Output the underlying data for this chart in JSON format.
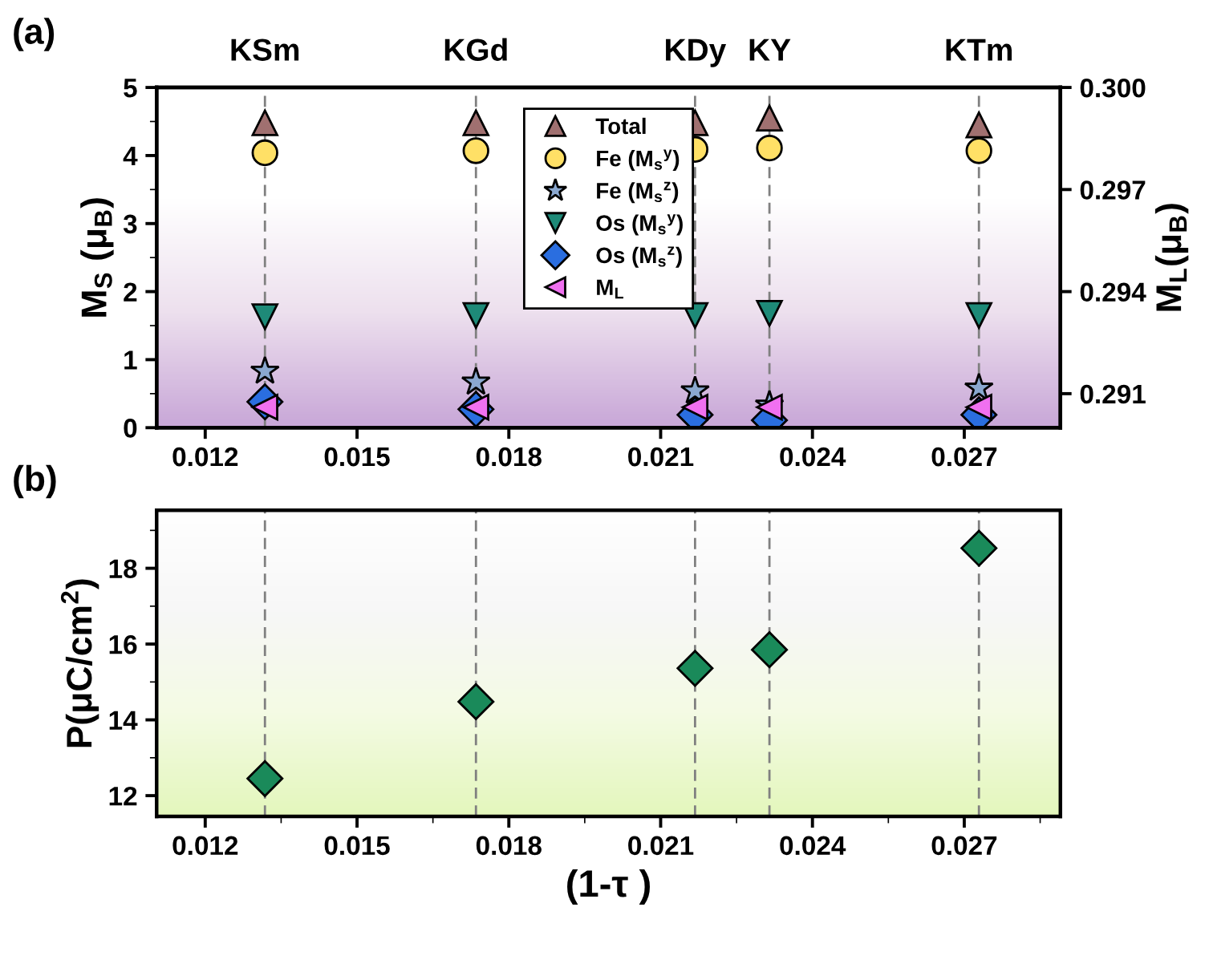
{
  "chart_data": [
    {
      "type": "scatter",
      "annotations": [
        "(a)"
      ],
      "ylabel": "M$_{S}$ (μ$_{B}$)",
      "y2label": "M$_{L}$(μ$_{B}$)",
      "x": [
        0.01318,
        0.01735,
        0.02168,
        0.02315,
        0.02729
      ],
      "series": [
        {
          "name": "Total",
          "color": "#a07070",
          "marker": "triangle_up",
          "values": [
            4.48,
            4.48,
            4.48,
            4.55,
            4.45
          ]
        },
        {
          "name": "Fe (M$_{s}$$^{y}$)",
          "color": "#ffe066",
          "marker": "circle",
          "values": [
            4.04,
            4.07,
            4.09,
            4.11,
            4.07
          ]
        },
        {
          "name": "Fe (M$_{s}$$^{z}$)",
          "color": "#8aa8d0",
          "marker": "star",
          "values": [
            0.83,
            0.67,
            0.54,
            0.33,
            0.58
          ]
        },
        {
          "name": "Os (M$_{s}$$^{y}$)",
          "color": "#1e8a78",
          "marker": "triangle_down",
          "values": [
            1.63,
            1.65,
            1.65,
            1.68,
            1.65
          ]
        },
        {
          "name": "Os (M$_{s}$$^{z}$)",
          "color": "#2a6ee0",
          "marker": "diamond",
          "values": [
            0.38,
            0.27,
            0.19,
            0.11,
            0.19
          ]
        },
        {
          "name": "M$_{L}$",
          "color": "#f070f0",
          "marker": "triangle_left",
          "axis": "y2",
          "values": [
            0.2906,
            0.2906,
            0.2906,
            0.2906,
            0.2906
          ]
        }
      ],
      "xlim": [
        0.01104,
        0.0289
      ],
      "xticks": [
        0.012,
        0.015,
        0.018,
        0.021,
        0.024,
        0.027
      ],
      "ylim": [
        0,
        5
      ],
      "yticks": [
        0,
        1,
        2,
        3,
        4,
        5
      ],
      "y2lim": [
        0.29,
        0.3
      ],
      "y2ticks": [
        0.291,
        0.294,
        0.297,
        {
          "value": 0.3,
          "label": "0.300"
        }
      ],
      "ref_lines": [
        {
          "axis": "x",
          "value": 0.01318,
          "label": "KSm",
          "color": "#808080",
          "line_style": "dashed"
        },
        {
          "axis": "x",
          "value": 0.01735,
          "label": "KGd",
          "color": "#808080",
          "line_style": "dashed"
        },
        {
          "axis": "x",
          "value": 0.02168,
          "label": "KDy",
          "color": "#808080",
          "line_style": "dashed"
        },
        {
          "axis": "x",
          "value": 0.02315,
          "label": "KY",
          "color": "#808080",
          "line_style": "dashed"
        },
        {
          "axis": "x",
          "value": 0.02729,
          "label": "KTm",
          "color": "#808080",
          "line_style": "dashed"
        }
      ],
      "legend": "top center",
      "grid": false
    },
    {
      "type": "scatter",
      "annotations": [
        "(b)"
      ],
      "ylabel": "P(μC/cm$^{2}$)",
      "xlabel": "(1-τ )",
      "x": [
        0.01318,
        0.01735,
        0.02168,
        0.02315,
        0.02729
      ],
      "series": [
        {
          "color": "#1a8a5a",
          "marker": "diamond",
          "values": [
            12.45,
            14.48,
            15.36,
            15.85,
            18.53
          ]
        }
      ],
      "xlim": [
        0.01104,
        0.0289
      ],
      "xticks": [
        0.012,
        0.015,
        0.018,
        0.021,
        0.024,
        0.027
      ],
      "ylim": [
        11.45,
        19.53
      ],
      "yticks": [
        12,
        14,
        16,
        18
      ],
      "ref_lines": [
        {
          "axis": "x",
          "value": 0.01318,
          "label": null,
          "color": "#808080",
          "line_style": "dashed"
        },
        {
          "axis": "x",
          "value": 0.01735,
          "label": null,
          "color": "#808080",
          "line_style": "dashed"
        },
        {
          "axis": "x",
          "value": 0.02168,
          "label": null,
          "color": "#808080",
          "line_style": "dashed"
        },
        {
          "axis": "x",
          "value": 0.02315,
          "label": null,
          "color": "#808080",
          "line_style": "dashed"
        },
        {
          "axis": "x",
          "value": 0.02729,
          "label": null,
          "color": "#808080",
          "line_style": "dashed"
        }
      ],
      "grid": false
    }
  ]
}
